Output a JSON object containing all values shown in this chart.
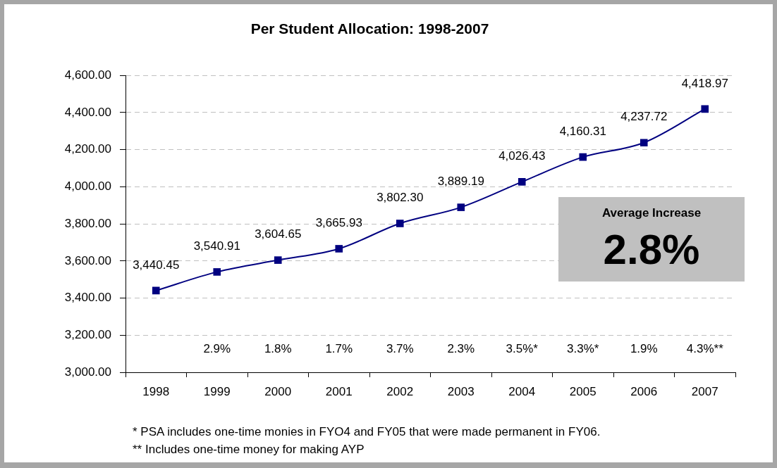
{
  "chart_data": {
    "type": "line",
    "title": "Per Student Allocation: 1998-2007",
    "categories": [
      "1998",
      "1999",
      "2000",
      "2001",
      "2002",
      "2003",
      "2004",
      "2005",
      "2006",
      "2007"
    ],
    "values": [
      3440.45,
      3540.91,
      3604.65,
      3665.93,
      3802.3,
      3889.19,
      4026.43,
      4160.31,
      4237.72,
      4418.97
    ],
    "value_labels": [
      "3,440.45",
      "3,540.91",
      "3,604.65",
      "3,665.93",
      "3,802.30",
      "3,889.19",
      "4,026.43",
      "4,160.31",
      "4,237.72",
      "4,418.97"
    ],
    "color": "#000080",
    "marker": "square",
    "ylim": [
      3000,
      4600
    ],
    "yticks": [
      {
        "value": 3000,
        "label": "3,000.00"
      },
      {
        "value": 3200,
        "label": "3,200.00"
      },
      {
        "value": 3400,
        "label": "3,400.00"
      },
      {
        "value": 3600,
        "label": "3,600.00"
      },
      {
        "value": 3800,
        "label": "3,800.00"
      },
      {
        "value": 4000,
        "label": "4,000.00"
      },
      {
        "value": 4200,
        "label": "4,200.00"
      },
      {
        "value": 4400,
        "label": "4,400.00"
      },
      {
        "value": 4600,
        "label": "4,600.00"
      }
    ],
    "grid": "y",
    "annotations": [
      "2.9%",
      "1.8%",
      "1.7%",
      "3.7%",
      "2.3%",
      "3.5%*",
      "3.3%*",
      "1.9%",
      "4.3%**",
      "Average Increase",
      "2.8%",
      "* PSA includes one-time monies in FYO4 and FY05 that were made permanent in FY06.",
      "** Includes one-time money for making AYP"
    ]
  }
}
